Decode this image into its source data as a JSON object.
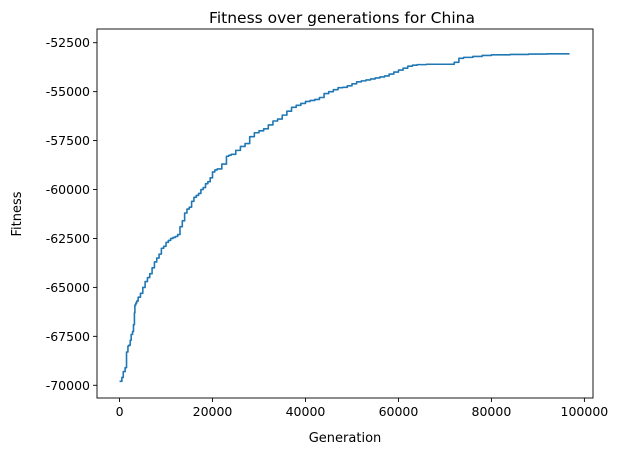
{
  "chart_data": {
    "type": "line",
    "title": "Fitness over generations for China",
    "xlabel": "Generation",
    "ylabel": "Fitness",
    "xlim": [
      -4850,
      101850
    ],
    "ylim": [
      -70650,
      -51800
    ],
    "xticks": [
      0,
      20000,
      40000,
      60000,
      80000,
      100000
    ],
    "xtick_labels": [
      "0",
      "20000",
      "40000",
      "60000",
      "80000",
      "100000"
    ],
    "yticks": [
      -70000,
      -67500,
      -65000,
      -62500,
      -60000,
      -57500,
      -55000,
      -52500
    ],
    "ytick_labels": [
      "-70000",
      "-67500",
      "-65000",
      "-62500",
      "-60000",
      "-57500",
      "-55000",
      "-52500"
    ],
    "grid": false,
    "series": [
      {
        "color": "#1f77b4",
        "x": [
          0,
          500,
          800,
          1200,
          1500,
          1800,
          2000,
          2300,
          2500,
          2800,
          3000,
          3200,
          3300,
          3500,
          3700,
          4000,
          4500,
          5000,
          5500,
          6000,
          6500,
          7000,
          7500,
          8000,
          8500,
          9000,
          9500,
          10000,
          10500,
          11000,
          11500,
          12000,
          12500,
          13000,
          13500,
          14000,
          14500,
          15000,
          15500,
          16000,
          16500,
          17000,
          17500,
          18000,
          18500,
          19000,
          19500,
          20000,
          20500,
          21000,
          22000,
          23000,
          23500,
          24000,
          25000,
          26000,
          27000,
          28000,
          29000,
          30000,
          31000,
          32000,
          33000,
          34000,
          35000,
          36000,
          37000,
          38000,
          39000,
          40000,
          41000,
          42000,
          43000,
          44000,
          45000,
          46000,
          47000,
          48000,
          49000,
          50000,
          51000,
          52000,
          53000,
          54000,
          55000,
          56000,
          57000,
          58000,
          59000,
          60000,
          61000,
          62000,
          63000,
          64000,
          66000,
          68000,
          70000,
          72000,
          73000,
          74000,
          76000,
          78000,
          80000,
          84000,
          88000,
          92000,
          96700
        ],
        "y": [
          -69800,
          -69600,
          -69300,
          -69100,
          -68300,
          -68000,
          -67950,
          -67700,
          -67400,
          -67250,
          -66900,
          -66300,
          -65900,
          -65800,
          -65700,
          -65500,
          -65300,
          -65000,
          -64700,
          -64500,
          -64300,
          -64000,
          -63700,
          -63500,
          -63300,
          -63000,
          -62900,
          -62700,
          -62600,
          -62500,
          -62450,
          -62400,
          -62300,
          -61900,
          -61600,
          -61200,
          -61000,
          -60900,
          -60600,
          -60400,
          -60300,
          -60200,
          -60000,
          -59900,
          -59700,
          -59600,
          -59400,
          -59100,
          -59000,
          -58950,
          -58700,
          -58300,
          -58250,
          -58200,
          -58000,
          -57800,
          -57650,
          -57300,
          -57100,
          -57000,
          -56900,
          -56700,
          -56500,
          -56400,
          -56200,
          -56000,
          -55800,
          -55700,
          -55600,
          -55500,
          -55450,
          -55400,
          -55300,
          -55100,
          -55000,
          -54900,
          -54800,
          -54780,
          -54700,
          -54600,
          -54500,
          -54450,
          -54400,
          -54350,
          -54300,
          -54250,
          -54200,
          -54100,
          -54000,
          -53900,
          -53800,
          -53700,
          -53650,
          -53620,
          -53600,
          -53600,
          -53600,
          -53500,
          -53300,
          -53250,
          -53200,
          -53150,
          -53120,
          -53100,
          -53080,
          -53070,
          -53050
        ]
      }
    ]
  }
}
